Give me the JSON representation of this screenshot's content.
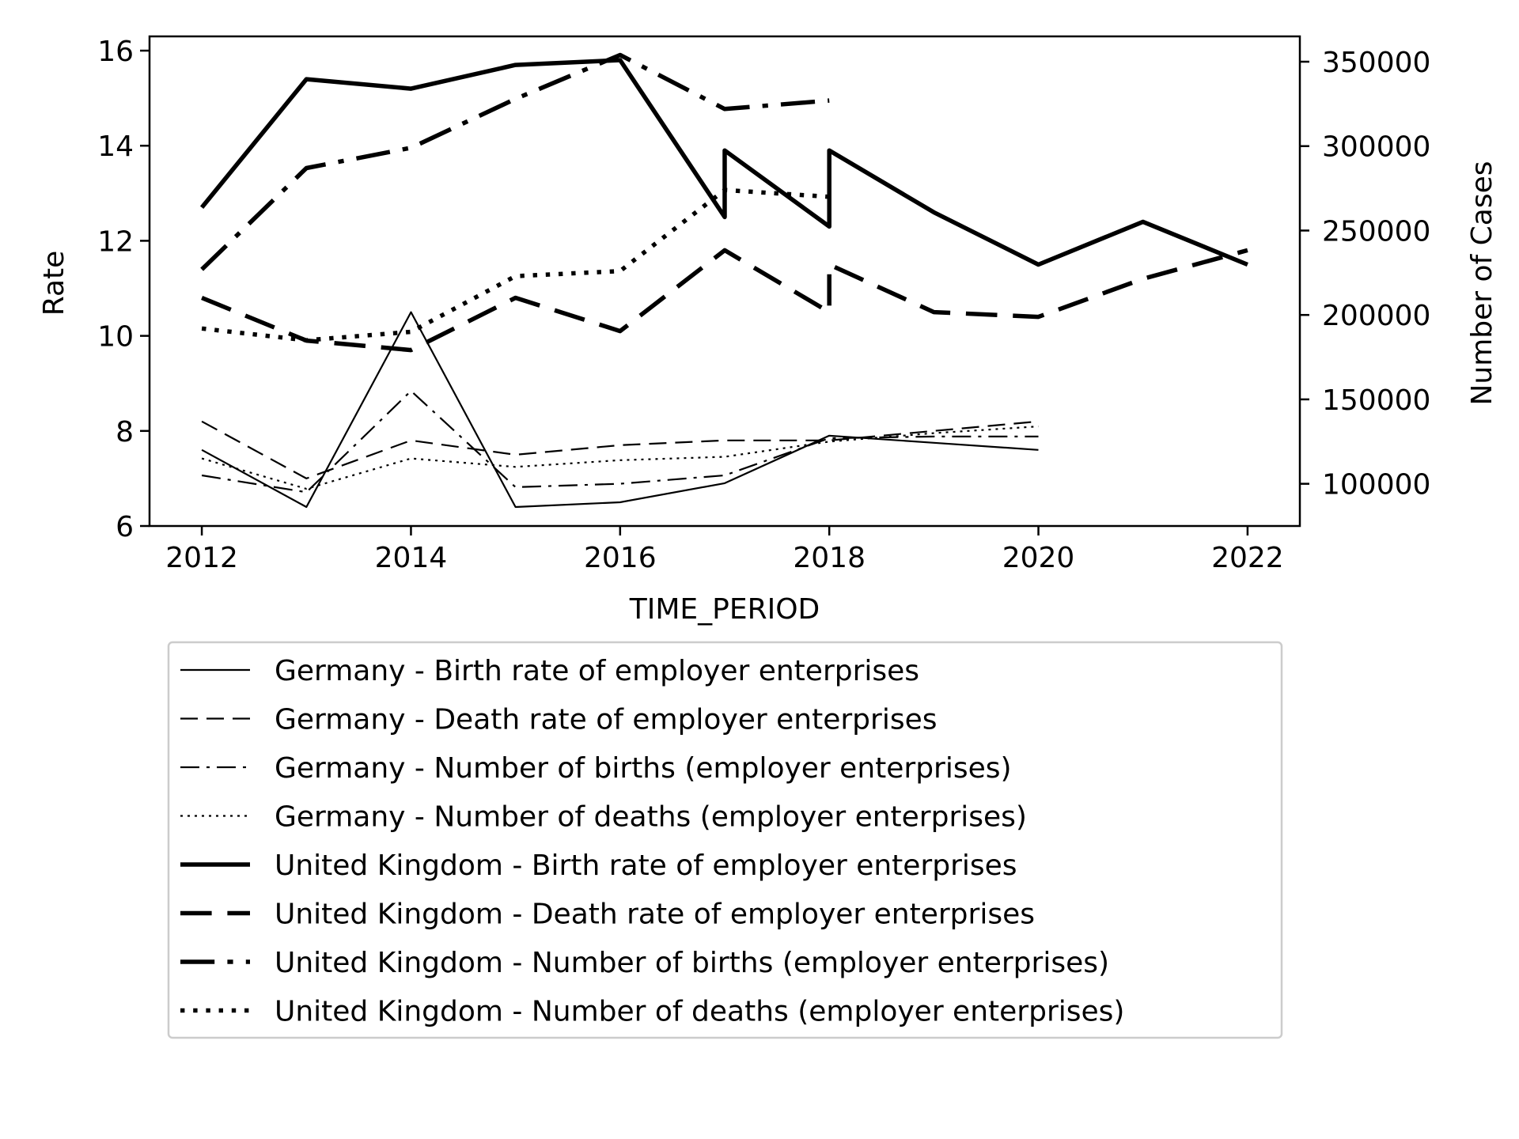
{
  "chart_data": {
    "type": "line",
    "title": "",
    "xlabel": "TIME_PERIOD",
    "ylabel": "Rate",
    "y2label": "Number of Cases",
    "xlim": [
      2011.5,
      2022.5
    ],
    "ylim": [
      6,
      16.3
    ],
    "y2lim": [
      75000,
      365000
    ],
    "xticks": [
      "2012",
      "2014",
      "2016",
      "2018",
      "2020",
      "2022"
    ],
    "yticks": [
      "6",
      "8",
      "10",
      "12",
      "14",
      "16"
    ],
    "y2ticks": [
      "100000",
      "150000",
      "200000",
      "250000",
      "300000",
      "350000"
    ],
    "grid": false,
    "legend_position": "below",
    "series": [
      {
        "name": "Germany - Birth rate of employer enterprises",
        "axis": "left",
        "style": "solid",
        "weight": "thin",
        "points": [
          [
            2012,
            7.6
          ],
          [
            2013,
            6.4
          ],
          [
            2014,
            10.5
          ],
          [
            2015,
            6.4
          ],
          [
            2016,
            6.5
          ],
          [
            2017,
            6.9
          ],
          [
            2018,
            7.9
          ],
          [
            2019,
            7.75
          ],
          [
            2020,
            7.6
          ]
        ]
      },
      {
        "name": "Germany - Death rate of employer enterprises",
        "axis": "left",
        "style": "dashed",
        "weight": "thin",
        "points": [
          [
            2012,
            8.2
          ],
          [
            2013,
            7.0
          ],
          [
            2014,
            7.8
          ],
          [
            2015,
            7.5
          ],
          [
            2016,
            7.7
          ],
          [
            2017,
            7.8
          ],
          [
            2018,
            7.8
          ],
          [
            2019,
            8.0
          ],
          [
            2020,
            8.2
          ]
        ]
      },
      {
        "name": "Germany - Number of births (employer enterprises)",
        "axis": "right",
        "style": "dashdot",
        "weight": "thin",
        "points": [
          [
            2012,
            105000
          ],
          [
            2013,
            95000
          ],
          [
            2014,
            155000
          ],
          [
            2015,
            98000
          ],
          [
            2016,
            100000
          ],
          [
            2017,
            105000
          ],
          [
            2018,
            127000
          ],
          [
            2019,
            128000
          ],
          [
            2020,
            128000
          ]
        ]
      },
      {
        "name": "Germany - Number of deaths (employer enterprises)",
        "axis": "right",
        "style": "dotted",
        "weight": "thin",
        "points": [
          [
            2012,
            115000
          ],
          [
            2013,
            97000
          ],
          [
            2014,
            115000
          ],
          [
            2015,
            110000
          ],
          [
            2016,
            114000
          ],
          [
            2017,
            116000
          ],
          [
            2018,
            125000
          ],
          [
            2019,
            130000
          ],
          [
            2020,
            134000
          ]
        ]
      },
      {
        "name": "United Kingdom - Birth rate of employer enterprises",
        "axis": "left",
        "style": "solid",
        "weight": "thick",
        "points": [
          [
            2012,
            12.7
          ],
          [
            2013,
            15.4
          ],
          [
            2014,
            15.2
          ],
          [
            2015,
            15.7
          ],
          [
            2016,
            15.8
          ],
          [
            2017,
            12.5
          ],
          [
            2017,
            13.9
          ],
          [
            2018,
            12.3
          ],
          [
            2018,
            13.9
          ],
          [
            2019,
            12.6
          ],
          [
            2020,
            11.5
          ],
          [
            2021,
            12.4
          ],
          [
            2022,
            11.5
          ]
        ]
      },
      {
        "name": "United Kingdom - Death rate of employer enterprises",
        "axis": "left",
        "style": "dashed",
        "weight": "thick",
        "points": [
          [
            2012,
            10.8
          ],
          [
            2013,
            9.9
          ],
          [
            2014,
            9.7
          ],
          [
            2015,
            10.8
          ],
          [
            2016,
            10.1
          ],
          [
            2017,
            11.8
          ],
          [
            2018,
            10.5
          ],
          [
            2018,
            11.5
          ],
          [
            2019,
            10.5
          ],
          [
            2020,
            10.4
          ],
          [
            2021,
            11.2
          ],
          [
            2022,
            11.8
          ]
        ]
      },
      {
        "name": "United Kingdom - Number of births (employer enterprises)",
        "axis": "right",
        "style": "dashdot",
        "weight": "thick",
        "points": [
          [
            2012,
            227000
          ],
          [
            2013,
            287000
          ],
          [
            2014,
            299000
          ],
          [
            2015,
            328000
          ],
          [
            2016,
            354000
          ],
          [
            2017,
            322000
          ],
          [
            2018,
            327000
          ]
        ]
      },
      {
        "name": "United Kingdom - Number of deaths (employer enterprises)",
        "axis": "right",
        "style": "dotted",
        "weight": "thick",
        "points": [
          [
            2012,
            192000
          ],
          [
            2013,
            185000
          ],
          [
            2014,
            190000
          ],
          [
            2015,
            223000
          ],
          [
            2016,
            226000
          ],
          [
            2017,
            274000
          ],
          [
            2018,
            270000
          ]
        ]
      }
    ]
  }
}
